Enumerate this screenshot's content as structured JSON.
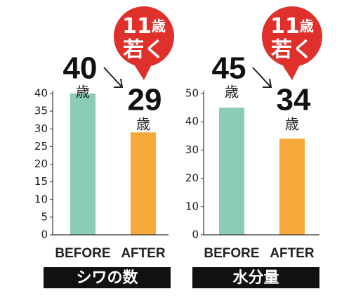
{
  "chart_data": [
    {
      "type": "bar",
      "categories": [
        "BEFORE",
        "AFTER"
      ],
      "values": [
        40,
        29
      ],
      "colors": [
        "#8ccbb5",
        "#f5a93a"
      ],
      "ylim": [
        0,
        40
      ],
      "yticks": [
        0,
        5,
        10,
        15,
        20,
        25,
        30,
        35,
        40
      ],
      "unit_label": "歳",
      "annotation": {
        "number": "11",
        "unit": "歳",
        "text": "若く"
      },
      "caption": "シワの数"
    },
    {
      "type": "bar",
      "categories": [
        "BEFORE",
        "AFTER"
      ],
      "values": [
        45,
        34
      ],
      "colors": [
        "#8ccbb5",
        "#f5a93a"
      ],
      "ylim": [
        0,
        50
      ],
      "yticks": [
        0,
        10,
        20,
        30,
        40,
        50
      ],
      "unit_label": "歳",
      "annotation": {
        "number": "11",
        "unit": "歳",
        "text": "若く"
      },
      "caption": "水分量"
    }
  ]
}
